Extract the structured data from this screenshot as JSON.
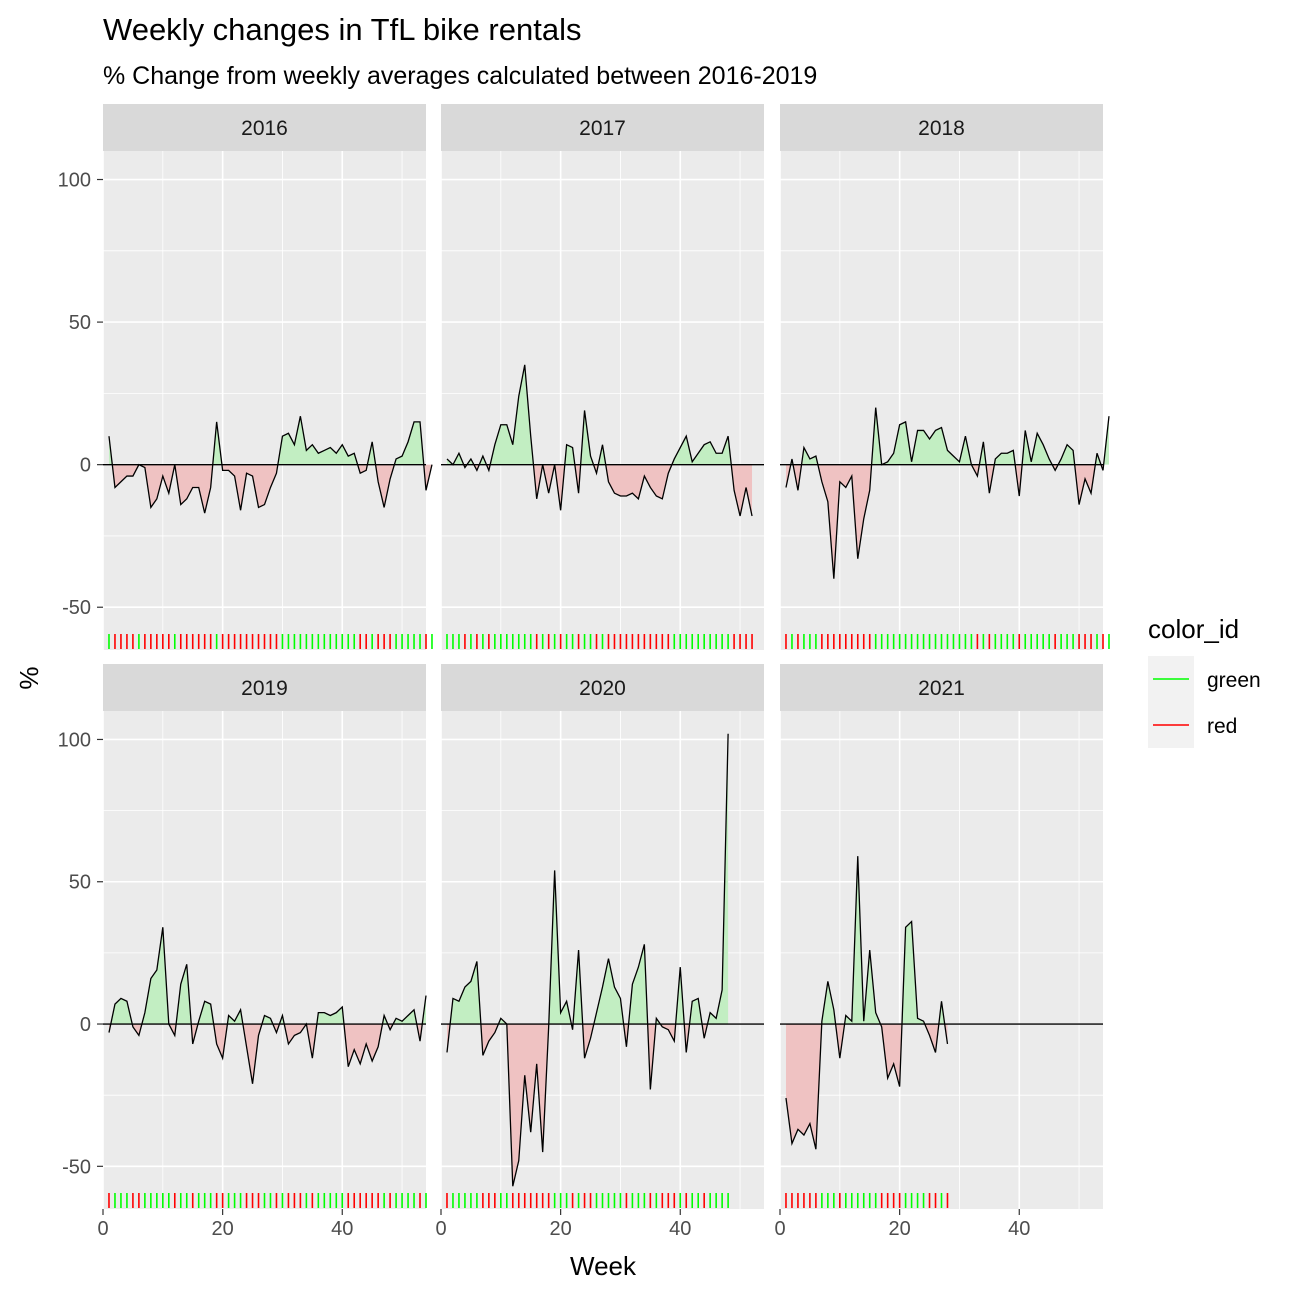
{
  "chart_data": {
    "type": "area",
    "title": "Weekly changes in TfL bike rentals",
    "subtitle": "% Change from weekly averages calculated between 2016-2019",
    "xlabel": "Week",
    "ylabel": "%",
    "xlim": [
      0,
      54
    ],
    "ylim": [
      -65,
      110
    ],
    "x_ticks": [
      0,
      20,
      40
    ],
    "y_ticks": [
      -50,
      0,
      50,
      100
    ],
    "grid": true,
    "legend": {
      "title": "color_id",
      "position": "right",
      "entries": [
        {
          "label": "green",
          "color": "#00ff00"
        },
        {
          "label": "red",
          "color": "#ff0000"
        }
      ]
    },
    "colors": {
      "positive_fill": "#c2eec2",
      "negative_fill": "#efc2c2",
      "line": "#000000",
      "panel_bg": "#ebebeb",
      "strip_bg": "#d9d9d9",
      "grid": "#ffffff"
    },
    "facets": [
      {
        "label": "2016",
        "values": [
          10,
          -8,
          -6,
          -4,
          -4,
          0,
          -1,
          -15,
          -12,
          -4,
          -10,
          0,
          -14,
          -12,
          -8,
          -8,
          -17,
          -8,
          15,
          -2,
          -2,
          -4,
          -16,
          -3,
          -4,
          -15,
          -14,
          -8,
          -3,
          10,
          11,
          7,
          17,
          5,
          7,
          4,
          5,
          6,
          4,
          7,
          3,
          4,
          -3,
          -2,
          8,
          -6,
          -15,
          -5,
          2,
          3,
          8,
          15,
          15,
          -9,
          0
        ]
      },
      {
        "label": "2017",
        "values": [
          2,
          0,
          4,
          -1,
          2,
          -2,
          3,
          -2,
          7,
          14,
          14,
          7,
          24,
          35,
          10,
          -12,
          0,
          -10,
          0,
          -16,
          7,
          6,
          -10,
          19,
          3,
          -3,
          7,
          -6,
          -10,
          -11,
          -11,
          -10,
          -12,
          -4,
          -8,
          -11,
          -12,
          -3,
          2,
          6,
          10,
          1,
          4,
          7,
          8,
          4,
          4,
          10,
          -9,
          -18,
          -8,
          -18
        ]
      },
      {
        "label": "2018",
        "values": [
          -8,
          2,
          -9,
          6,
          2,
          3,
          -6,
          -13,
          -40,
          -6,
          -8,
          -4,
          -33,
          -19,
          -9,
          20,
          0,
          1,
          4,
          14,
          15,
          1,
          12,
          12,
          9,
          12,
          13,
          5,
          3,
          1,
          10,
          0,
          -4,
          8,
          -10,
          2,
          4,
          4,
          5,
          -11,
          12,
          1,
          11,
          7,
          2,
          -2,
          2,
          7,
          5,
          -14,
          -5,
          -10,
          4,
          -2,
          17
        ]
      },
      {
        "label": "2019",
        "values": [
          -3,
          7,
          9,
          8,
          -1,
          -4,
          4,
          16,
          19,
          34,
          0,
          -4,
          14,
          21,
          -7,
          1,
          8,
          7,
          -7,
          -12,
          3,
          1,
          5,
          -8,
          -21,
          -4,
          3,
          2,
          -3,
          3,
          -7,
          -4,
          -3,
          0,
          -12,
          4,
          4,
          3,
          4,
          6,
          -15,
          -9,
          -14,
          -7,
          -13,
          -8,
          3,
          -2,
          2,
          1,
          3,
          5,
          -6,
          10
        ]
      },
      {
        "label": "2020",
        "values": [
          -10,
          9,
          8,
          13,
          15,
          22,
          -11,
          -6,
          -3,
          2,
          0,
          -57,
          -48,
          -18,
          -38,
          -14,
          -45,
          -1,
          54,
          4,
          8,
          -2,
          26,
          -12,
          -5,
          4,
          13,
          23,
          13,
          9,
          -8,
          14,
          20,
          28,
          -23,
          2,
          -1,
          -2,
          -6,
          20,
          -10,
          8,
          9,
          -5,
          4,
          2,
          12,
          102
        ]
      },
      {
        "label": "2021",
        "values": [
          -26,
          -42,
          -37,
          -39,
          -35,
          -44,
          1,
          15,
          5,
          -12,
          3,
          1,
          59,
          1,
          26,
          4,
          -1,
          -19,
          -14,
          -22,
          34,
          36,
          2,
          1,
          -4,
          -10,
          8,
          -7
        ]
      }
    ]
  }
}
